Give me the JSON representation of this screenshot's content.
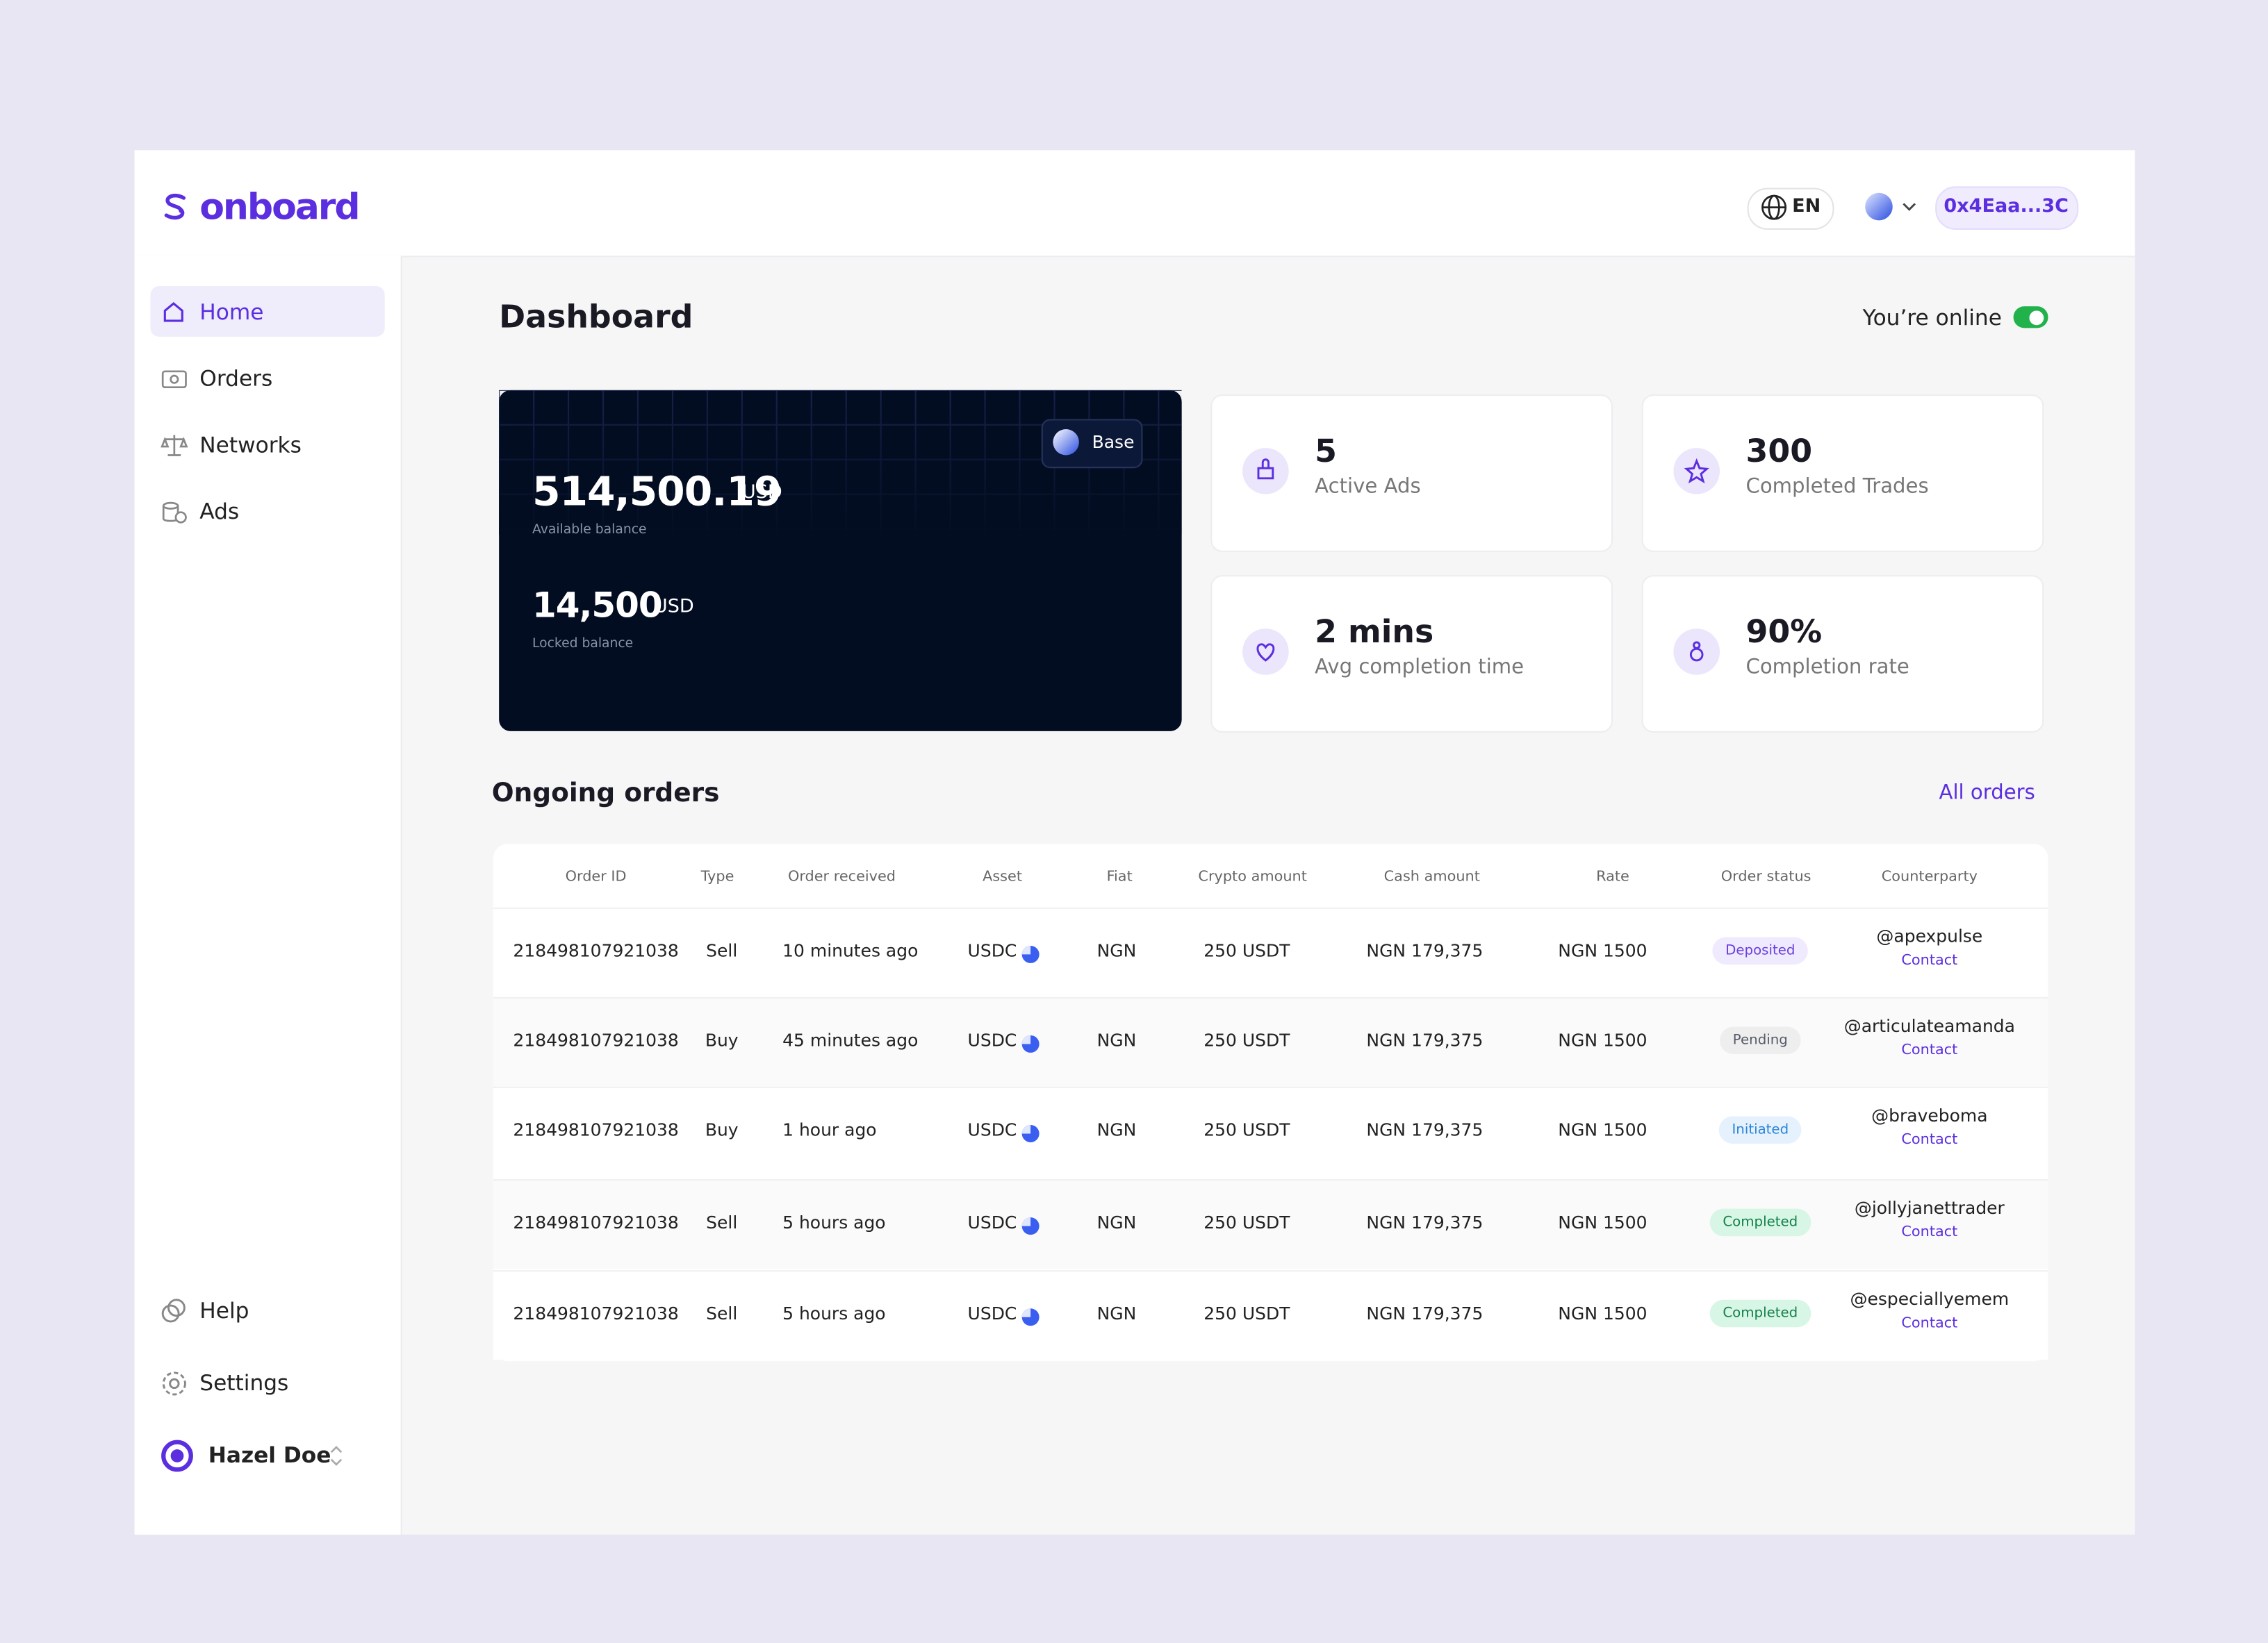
{
  "brand": "onboard",
  "header": {
    "language": "EN",
    "wallet": "0x4Eaa...3C"
  },
  "nav": {
    "items": [
      "Home",
      "Orders",
      "Networks",
      "Ads"
    ],
    "bottom": [
      "Help",
      "Settings"
    ],
    "user": "Hazel Doe"
  },
  "page": {
    "title": "Dashboard",
    "status": "You’re online"
  },
  "balance_card": {
    "network": "Base",
    "available": "514,500.19",
    "available_currency": "USD",
    "available_label": "Available balance",
    "locked": "14,500",
    "locked_currency": "USD",
    "locked_label": "Locked balance"
  },
  "stats": [
    {
      "value": "5",
      "label": "Active Ads"
    },
    {
      "value": "300",
      "label": "Completed Trades"
    },
    {
      "value": "2 mins",
      "label": "Avg completion time"
    },
    {
      "value": "90%",
      "label": "Completion rate"
    }
  ],
  "orders": {
    "title": "Ongoing orders",
    "link": "All orders",
    "columns": [
      "Order ID",
      "Type",
      "Order received",
      "Asset",
      "Fiat",
      "Crypto amount",
      "Cash amount",
      "Rate",
      "Order status",
      "Counterparty"
    ],
    "rows": [
      {
        "id": "218498107921038",
        "type": "Sell",
        "received": "10 minutes ago",
        "asset": "USDC",
        "fiat": "NGN",
        "crypto": "250 USDT",
        "cash": "NGN 179,375",
        "rate": "NGN 1500",
        "status": "Deposited",
        "status_color": "#6b3fe0",
        "status_bg": "#efeafd",
        "counterparty": "@apexpulse",
        "contact": "Contact"
      },
      {
        "id": "218498107921038",
        "type": "Buy",
        "received": "45 minutes ago",
        "asset": "USDC",
        "fiat": "NGN",
        "crypto": "250 USDT",
        "cash": "NGN 179,375",
        "rate": "NGN 1500",
        "status": "Pending",
        "status_color": "#555b66",
        "status_bg": "#eeeeef",
        "counterparty": "@articulateamanda",
        "contact": "Contact"
      },
      {
        "id": "218498107921038",
        "type": "Buy",
        "received": "1 hour ago",
        "asset": "USDC",
        "fiat": "NGN",
        "crypto": "250 USDT",
        "cash": "NGN 179,375",
        "rate": "NGN 1500",
        "status": "Initiated",
        "status_color": "#2a84d8",
        "status_bg": "#e5f2fd",
        "counterparty": "@braveboma",
        "contact": "Contact"
      },
      {
        "id": "218498107921038",
        "type": "Sell",
        "received": "5 hours ago",
        "asset": "USDC",
        "fiat": "NGN",
        "crypto": "250 USDT",
        "cash": "NGN 179,375",
        "rate": "NGN 1500",
        "status": "Completed",
        "status_color": "#12804a",
        "status_bg": "#d8f6e5",
        "counterparty": "@jollyjanettrader",
        "contact": "Contact"
      },
      {
        "id": "218498107921038",
        "type": "Sell",
        "received": "5 hours ago",
        "asset": "USDC",
        "fiat": "NGN",
        "crypto": "250 USDT",
        "cash": "NGN 179,375",
        "rate": "NGN 1500",
        "status": "Completed",
        "status_color": "#12804a",
        "status_bg": "#d8f6e5",
        "counterparty": "@especiallyemem",
        "contact": "Contact"
      }
    ]
  }
}
